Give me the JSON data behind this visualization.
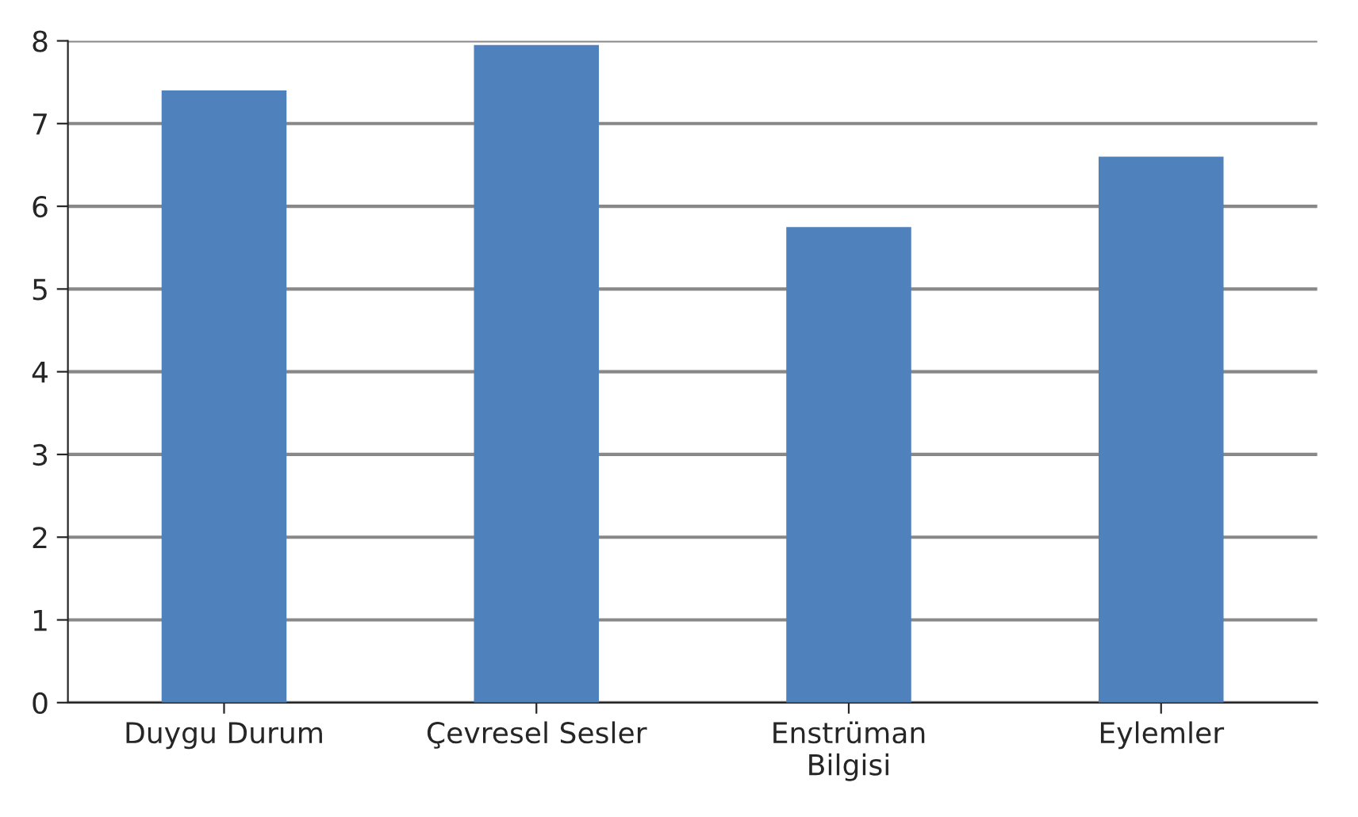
{
  "chart_data": {
    "type": "bar",
    "categories": [
      "Duygu Durum",
      "Çevresel Sesler",
      "Enstrüman\nBilgisi",
      "Eylemler"
    ],
    "values": [
      7.4,
      7.95,
      5.75,
      6.6
    ],
    "color": "#4f81bd",
    "ylim": [
      0,
      8
    ],
    "yticks": [
      0,
      1,
      2,
      3,
      4,
      5,
      6,
      7,
      8
    ],
    "grid": "y"
  }
}
